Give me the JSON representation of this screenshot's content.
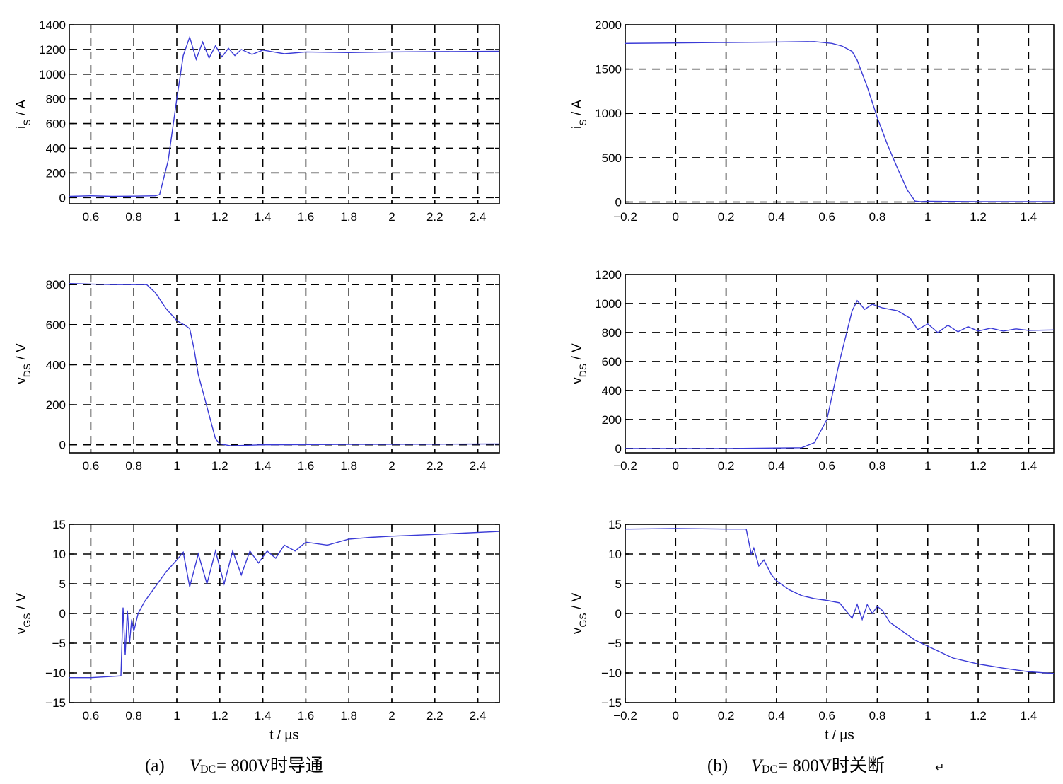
{
  "chart_data": [
    {
      "id": "a-is",
      "type": "line",
      "xlim": [
        0.5,
        2.5
      ],
      "ylim": [
        -50,
        1400
      ],
      "xticks": [
        "0.6",
        "0.8",
        "1",
        "1.2",
        "1.4",
        "1.6",
        "1.8",
        "2",
        "2.2",
        "2.4"
      ],
      "yticks": [
        "0",
        "200",
        "400",
        "600",
        "800",
        "1000",
        "1200",
        "1400"
      ],
      "ylabel": {
        "main": "i",
        "sub": "S",
        "rest": " / A"
      },
      "xlabel": "",
      "grid": true,
      "series": [
        {
          "color": "#3a3ad6",
          "x": [
            0.5,
            0.6,
            0.7,
            0.8,
            0.9,
            0.92,
            0.96,
            1.0,
            1.03,
            1.06,
            1.09,
            1.12,
            1.15,
            1.18,
            1.21,
            1.24,
            1.27,
            1.3,
            1.35,
            1.4,
            1.5,
            1.6,
            1.8,
            2.0,
            2.2,
            2.5
          ],
          "y": [
            10,
            15,
            10,
            12,
            15,
            25,
            300,
            800,
            1150,
            1300,
            1120,
            1260,
            1130,
            1230,
            1140,
            1210,
            1150,
            1200,
            1160,
            1195,
            1165,
            1180,
            1175,
            1180,
            1182,
            1185
          ]
        }
      ]
    },
    {
      "id": "b-is",
      "type": "line",
      "xlim": [
        -0.2,
        1.5
      ],
      "ylim": [
        -20,
        2000
      ],
      "xticks": [
        "−0.2",
        "0",
        "0.2",
        "0.4",
        "0.6",
        "0.8",
        "1",
        "1.2",
        "1.4"
      ],
      "yticks": [
        "0",
        "500",
        "1000",
        "1500",
        "2000"
      ],
      "ylabel": {
        "main": "i",
        "sub": "S",
        "rest": " / A"
      },
      "xlabel": "",
      "grid": true,
      "series": [
        {
          "color": "#3a3ad6",
          "x": [
            -0.2,
            0.0,
            0.2,
            0.4,
            0.55,
            0.62,
            0.66,
            0.7,
            0.72,
            0.76,
            0.8,
            0.84,
            0.88,
            0.92,
            0.95,
            0.97,
            1.0,
            1.2,
            1.5
          ],
          "y": [
            1790,
            1795,
            1800,
            1805,
            1810,
            1790,
            1760,
            1700,
            1600,
            1300,
            950,
            650,
            380,
            130,
            10,
            5,
            8,
            5,
            5
          ]
        }
      ]
    },
    {
      "id": "a-vds",
      "type": "line",
      "xlim": [
        0.5,
        2.5
      ],
      "ylim": [
        -40,
        850
      ],
      "xticks": [
        "0.6",
        "0.8",
        "1",
        "1.2",
        "1.4",
        "1.6",
        "1.8",
        "2",
        "2.2",
        "2.4"
      ],
      "yticks": [
        "0",
        "200",
        "400",
        "600",
        "800"
      ],
      "ylabel": {
        "main": "v",
        "sub": "DS",
        "rest": " / V"
      },
      "xlabel": "",
      "grid": true,
      "series": [
        {
          "color": "#3a3ad6",
          "x": [
            0.5,
            0.7,
            0.86,
            0.9,
            0.95,
            1.0,
            1.04,
            1.06,
            1.08,
            1.1,
            1.12,
            1.15,
            1.18,
            1.2,
            1.25,
            1.4,
            1.8,
            2.2,
            2.5
          ],
          "y": [
            805,
            800,
            800,
            760,
            680,
            620,
            595,
            580,
            480,
            350,
            270,
            150,
            30,
            5,
            -5,
            0,
            2,
            3,
            4
          ]
        }
      ]
    },
    {
      "id": "b-vds",
      "type": "line",
      "xlim": [
        -0.2,
        1.5
      ],
      "ylim": [
        -30,
        1200
      ],
      "xticks": [
        "−0.2",
        "0",
        "0.2",
        "0.4",
        "0.6",
        "0.8",
        "1",
        "1.2",
        "1.4"
      ],
      "yticks": [
        "0",
        "200",
        "400",
        "600",
        "800",
        "1000",
        "1200"
      ],
      "ylabel": {
        "main": "v",
        "sub": "DS",
        "rest": " / V"
      },
      "xlabel": "",
      "grid": true,
      "series": [
        {
          "color": "#3a3ad6",
          "x": [
            -0.2,
            0.2,
            0.5,
            0.55,
            0.6,
            0.65,
            0.7,
            0.72,
            0.75,
            0.78,
            0.82,
            0.88,
            0.93,
            0.96,
            1.0,
            1.04,
            1.08,
            1.12,
            1.16,
            1.2,
            1.25,
            1.3,
            1.35,
            1.4,
            1.5
          ],
          "y": [
            0,
            0,
            5,
            40,
            200,
            600,
            950,
            1020,
            960,
            995,
            970,
            950,
            900,
            820,
            860,
            800,
            850,
            805,
            840,
            810,
            830,
            810,
            825,
            815,
            818
          ]
        }
      ]
    },
    {
      "id": "a-vgs",
      "type": "line",
      "xlim": [
        0.5,
        2.5
      ],
      "ylim": [
        -15,
        15
      ],
      "xticks": [
        "0.6",
        "0.8",
        "1",
        "1.2",
        "1.4",
        "1.6",
        "1.8",
        "2",
        "2.2",
        "2.4"
      ],
      "yticks": [
        "−15",
        "−10",
        "−5",
        "0",
        "5",
        "10",
        "15"
      ],
      "ylabel": {
        "main": "v",
        "sub": "GS",
        "rest": " / V"
      },
      "xlabel": "t / µs",
      "grid": true,
      "series": [
        {
          "color": "#3a3ad6",
          "x": [
            0.5,
            0.6,
            0.74,
            0.75,
            0.76,
            0.77,
            0.78,
            0.79,
            0.8,
            0.82,
            0.85,
            0.9,
            0.95,
            1.0,
            1.03,
            1.06,
            1.1,
            1.14,
            1.18,
            1.22,
            1.26,
            1.3,
            1.34,
            1.38,
            1.42,
            1.46,
            1.5,
            1.55,
            1.6,
            1.7,
            1.8,
            1.9,
            2.0,
            2.2,
            2.5
          ],
          "y": [
            -10.8,
            -10.8,
            -10.5,
            1,
            -7,
            0.5,
            -5,
            -1,
            -3,
            0,
            2,
            4.5,
            7,
            9,
            10.3,
            4.5,
            10,
            5,
            10.5,
            5,
            10.5,
            6.5,
            10.5,
            8.5,
            10.5,
            9.3,
            11.5,
            10.5,
            12,
            11.5,
            12.5,
            12.8,
            13,
            13.3,
            13.8
          ]
        }
      ]
    },
    {
      "id": "b-vgs",
      "type": "line",
      "xlim": [
        -0.2,
        1.5
      ],
      "ylim": [
        -15,
        15
      ],
      "xticks": [
        "−0.2",
        "0",
        "0.2",
        "0.4",
        "0.6",
        "0.8",
        "1",
        "1.2",
        "1.4"
      ],
      "yticks": [
        "−15",
        "−10",
        "−5",
        "0",
        "5",
        "10",
        "15"
      ],
      "ylabel": {
        "main": "v",
        "sub": "GS",
        "rest": " / V"
      },
      "xlabel": "t / µs",
      "grid": true,
      "series": [
        {
          "color": "#3a3ad6",
          "x": [
            -0.2,
            0.0,
            0.2,
            0.28,
            0.3,
            0.31,
            0.33,
            0.35,
            0.38,
            0.4,
            0.45,
            0.5,
            0.55,
            0.6,
            0.65,
            0.7,
            0.72,
            0.74,
            0.76,
            0.78,
            0.8,
            0.82,
            0.85,
            0.9,
            0.95,
            1.0,
            1.1,
            1.2,
            1.3,
            1.4,
            1.5
          ],
          "y": [
            14.2,
            14.3,
            14.2,
            14.2,
            10,
            11,
            8,
            9,
            6.5,
            5.5,
            4,
            3,
            2.5,
            2.2,
            1.8,
            -0.8,
            1.5,
            -1,
            1.5,
            0,
            1.2,
            0.5,
            -1.5,
            -3,
            -4.5,
            -5.5,
            -7.5,
            -8.5,
            -9.2,
            -9.8,
            -10.1
          ]
        }
      ]
    }
  ],
  "captions": {
    "a": {
      "label": "(a)",
      "vsym": "V",
      "vsub": "DC",
      "text": " = 800V时导通"
    },
    "b": {
      "label": "(b)",
      "vsym": "V",
      "vsub": "DC",
      "text": " = 800V时关断",
      "mark": "↵"
    }
  }
}
